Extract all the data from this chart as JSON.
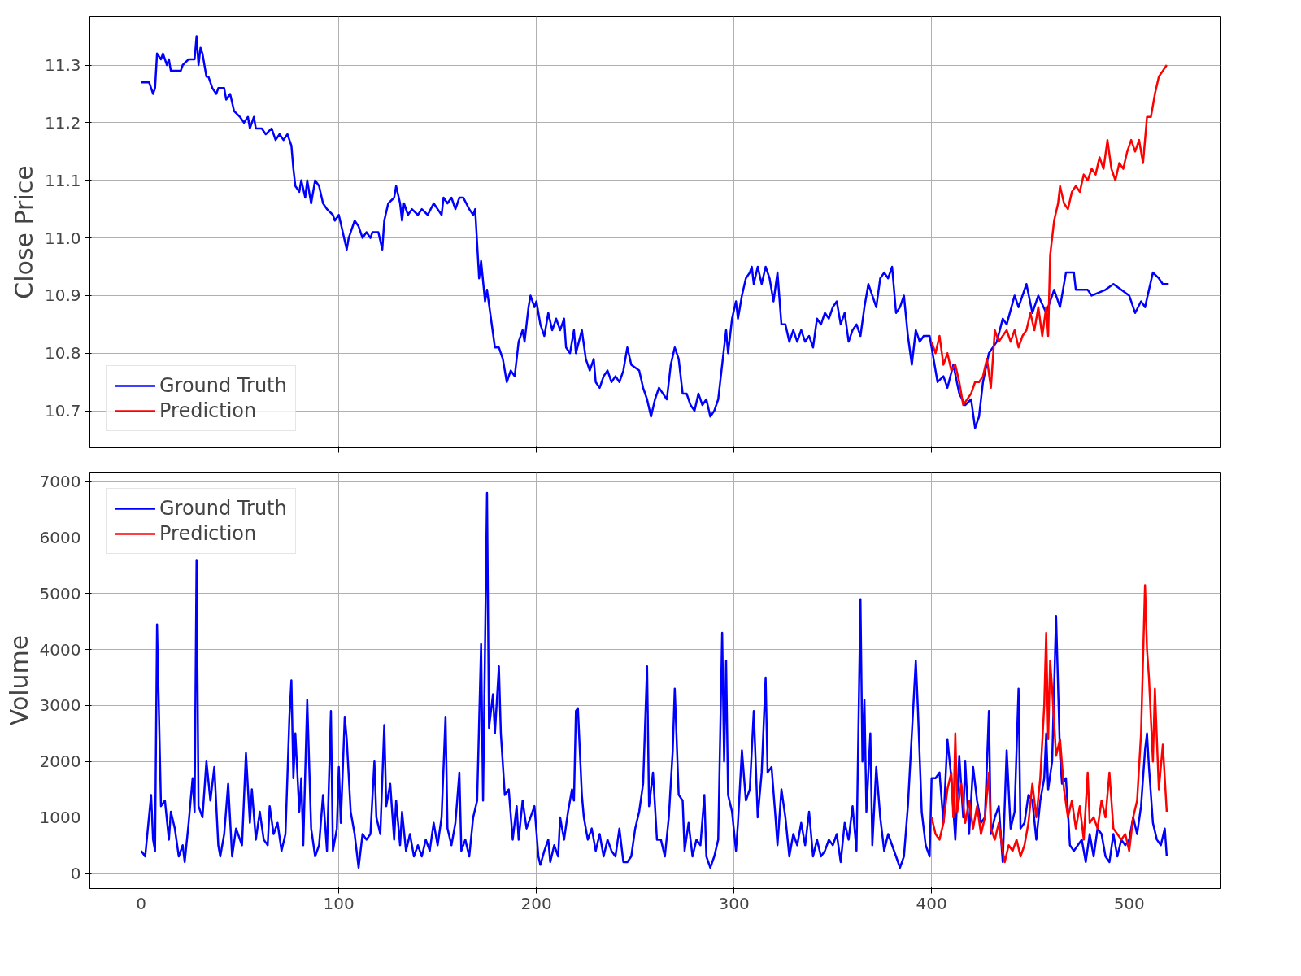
{
  "chart_data": [
    {
      "type": "line",
      "ylabel": "Close Price",
      "xlim": [
        -26,
        546
      ],
      "ylim": [
        10.636,
        11.384
      ],
      "xticks": [
        0,
        100,
        200,
        300,
        400,
        500
      ],
      "yticks": [
        10.7,
        10.8,
        10.9,
        {
          "value": 11.0,
          "label": "11.0"
        },
        11.1,
        11.2,
        11.3
      ],
      "tick_labels": "y",
      "grid": true,
      "legend": "bottom left",
      "series": [
        {
          "name": "Ground Truth",
          "color": "#0000ff",
          "x": [
            0,
            4,
            6,
            7,
            8,
            10,
            11,
            13,
            14,
            15,
            20,
            21,
            24,
            27,
            28,
            29,
            30,
            31,
            33,
            34,
            36,
            38,
            39,
            42,
            43,
            45,
            47,
            50,
            52,
            54,
            55,
            57,
            58,
            61,
            63,
            66,
            68,
            70,
            72,
            74,
            76,
            77,
            78,
            80,
            81,
            83,
            84,
            86,
            88,
            90,
            92,
            94,
            97,
            98,
            100,
            102,
            104,
            105,
            108,
            110,
            112,
            114,
            116,
            117,
            120,
            122,
            123,
            125,
            128,
            129,
            131,
            132,
            133,
            135,
            137,
            140,
            142,
            145,
            148,
            150,
            152,
            153,
            155,
            157,
            159,
            161,
            163,
            166,
            168,
            169,
            171,
            172,
            174,
            175,
            177,
            179,
            181,
            183,
            185,
            187,
            189,
            191,
            193,
            194,
            196,
            197,
            199,
            200,
            202,
            204,
            206,
            208,
            210,
            212,
            214,
            215,
            217,
            219,
            220,
            223,
            225,
            227,
            229,
            230,
            232,
            234,
            236,
            238,
            240,
            242,
            244,
            246,
            248,
            252,
            254,
            256,
            258,
            260,
            262,
            264,
            266,
            268,
            270,
            272,
            274,
            276,
            278,
            280,
            282,
            284,
            286,
            288,
            290,
            292,
            294,
            296,
            297,
            299,
            301,
            302,
            304,
            306,
            308,
            309,
            310,
            312,
            314,
            316,
            318,
            320,
            322,
            324,
            326,
            328,
            330,
            332,
            334,
            336,
            338,
            340,
            342,
            344,
            346,
            348,
            350,
            352,
            354,
            356,
            358,
            360,
            362,
            364,
            366,
            368,
            370,
            372,
            374,
            376,
            378,
            380,
            382,
            384,
            386,
            388,
            390,
            392,
            394,
            396,
            399,
            403,
            406,
            408,
            411,
            414,
            417,
            420,
            422,
            424,
            426,
            429,
            433,
            436,
            438,
            442,
            444,
            448,
            451,
            454,
            458,
            462,
            465,
            468,
            472,
            473,
            479,
            481,
            488,
            492,
            496,
            500,
            503,
            506,
            508,
            510,
            512,
            515,
            517,
            520
          ],
          "values": [
            11.27,
            11.27,
            11.25,
            11.26,
            11.32,
            11.31,
            11.32,
            11.3,
            11.31,
            11.29,
            11.29,
            11.3,
            11.31,
            11.31,
            11.35,
            11.3,
            11.33,
            11.32,
            11.28,
            11.28,
            11.26,
            11.25,
            11.26,
            11.26,
            11.24,
            11.25,
            11.22,
            11.21,
            11.2,
            11.21,
            11.19,
            11.21,
            11.19,
            11.19,
            11.18,
            11.19,
            11.17,
            11.18,
            11.17,
            11.18,
            11.16,
            11.12,
            11.09,
            11.08,
            11.1,
            11.07,
            11.1,
            11.06,
            11.1,
            11.09,
            11.06,
            11.05,
            11.04,
            11.03,
            11.04,
            11.01,
            10.98,
            11.0,
            11.03,
            11.02,
            11.0,
            11.01,
            11.0,
            11.01,
            11.01,
            10.98,
            11.03,
            11.06,
            11.07,
            11.09,
            11.06,
            11.03,
            11.06,
            11.04,
            11.05,
            11.04,
            11.05,
            11.04,
            11.06,
            11.05,
            11.04,
            11.07,
            11.06,
            11.07,
            11.05,
            11.07,
            11.07,
            11.05,
            11.04,
            11.05,
            10.93,
            10.96,
            10.89,
            10.91,
            10.86,
            10.81,
            10.81,
            10.79,
            10.75,
            10.77,
            10.76,
            10.82,
            10.84,
            10.82,
            10.88,
            10.9,
            10.88,
            10.89,
            10.85,
            10.83,
            10.87,
            10.84,
            10.86,
            10.84,
            10.86,
            10.81,
            10.8,
            10.84,
            10.8,
            10.84,
            10.79,
            10.77,
            10.79,
            10.75,
            10.74,
            10.76,
            10.77,
            10.75,
            10.76,
            10.75,
            10.77,
            10.81,
            10.78,
            10.77,
            10.74,
            10.72,
            10.69,
            10.72,
            10.74,
            10.73,
            10.72,
            10.78,
            10.81,
            10.79,
            10.73,
            10.73,
            10.71,
            10.7,
            10.73,
            10.71,
            10.72,
            10.69,
            10.7,
            10.72,
            10.78,
            10.84,
            10.8,
            10.86,
            10.89,
            10.86,
            10.9,
            10.93,
            10.94,
            10.95,
            10.92,
            10.95,
            10.92,
            10.95,
            10.93,
            10.89,
            10.94,
            10.85,
            10.85,
            10.82,
            10.84,
            10.82,
            10.84,
            10.82,
            10.83,
            10.81,
            10.86,
            10.85,
            10.87,
            10.86,
            10.88,
            10.89,
            10.85,
            10.87,
            10.82,
            10.84,
            10.85,
            10.83,
            10.88,
            10.92,
            10.9,
            10.88,
            10.93,
            10.94,
            10.93,
            10.95,
            10.87,
            10.88,
            10.9,
            10.83,
            10.78,
            10.84,
            10.82,
            10.83,
            10.83,
            10.75,
            10.76,
            10.74,
            10.78,
            10.73,
            10.71,
            10.72,
            10.67,
            10.69,
            10.75,
            10.8,
            10.82,
            10.86,
            10.85,
            10.9,
            10.88,
            10.92,
            10.87,
            10.9,
            10.87,
            10.91,
            10.88,
            10.94,
            10.94,
            10.91,
            10.91,
            10.9,
            10.91,
            10.92,
            10.91,
            10.9,
            10.87,
            10.89,
            10.88,
            10.91,
            10.94,
            10.93,
            10.92,
            10.92
          ]
        },
        {
          "name": "Prediction",
          "color": "#ff0000",
          "x": [
            400,
            402,
            404,
            406,
            408,
            410,
            412,
            414,
            416,
            418,
            420,
            422,
            424,
            426,
            428,
            430,
            432,
            434,
            436,
            438,
            440,
            442,
            444,
            446,
            448,
            450,
            452,
            454,
            456,
            458,
            459,
            460,
            462,
            464,
            465,
            467,
            469,
            471,
            473,
            475,
            477,
            479,
            481,
            483,
            485,
            487,
            489,
            491,
            493,
            495,
            497,
            499,
            501,
            503,
            505,
            507,
            509,
            511,
            513,
            515,
            517,
            519
          ],
          "values": [
            10.82,
            10.8,
            10.83,
            10.78,
            10.8,
            10.77,
            10.78,
            10.75,
            10.71,
            10.72,
            10.73,
            10.75,
            10.75,
            10.76,
            10.79,
            10.74,
            10.84,
            10.82,
            10.83,
            10.84,
            10.82,
            10.84,
            10.81,
            10.83,
            10.84,
            10.87,
            10.84,
            10.88,
            10.83,
            10.88,
            10.83,
            10.97,
            11.03,
            11.06,
            11.09,
            11.06,
            11.05,
            11.08,
            11.09,
            11.08,
            11.11,
            11.1,
            11.12,
            11.11,
            11.14,
            11.12,
            11.17,
            11.12,
            11.1,
            11.13,
            11.12,
            11.15,
            11.17,
            11.15,
            11.17,
            11.13,
            11.21,
            11.21,
            11.25,
            11.28,
            11.29,
            11.3
          ]
        }
      ]
    },
    {
      "type": "line",
      "ylabel": "Volume",
      "xlim": [
        -26,
        546
      ],
      "ylim": [
        -274,
        7172
      ],
      "xticks": [
        0,
        100,
        200,
        300,
        400,
        500
      ],
      "yticks": [
        0,
        1000,
        2000,
        3000,
        4000,
        5000,
        6000,
        7000
      ],
      "grid": true,
      "legend": "top left",
      "series": [
        {
          "name": "Ground Truth",
          "color": "#0000ff",
          "x": [
            0,
            2,
            5,
            6,
            7,
            8,
            10,
            12,
            14,
            15,
            17,
            19,
            21,
            22,
            24,
            26,
            27,
            28,
            29,
            31,
            33,
            35,
            37,
            39,
            40,
            42,
            44,
            46,
            48,
            51,
            53,
            55,
            56,
            58,
            60,
            62,
            64,
            65,
            67,
            69,
            71,
            73,
            75,
            76,
            77,
            78,
            80,
            81,
            82,
            84,
            86,
            88,
            90,
            92,
            94,
            96,
            97,
            99,
            100,
            101,
            103,
            104,
            106,
            108,
            110,
            112,
            114,
            116,
            118,
            119,
            121,
            123,
            124,
            126,
            128,
            129,
            131,
            132,
            134,
            136,
            138,
            140,
            142,
            144,
            146,
            148,
            150,
            152,
            154,
            155,
            157,
            159,
            161,
            162,
            164,
            166,
            168,
            170,
            172,
            173,
            175,
            176,
            178,
            179,
            181,
            182,
            184,
            186,
            188,
            190,
            191,
            193,
            195,
            197,
            199,
            201,
            202,
            204,
            206,
            207,
            209,
            211,
            212,
            214,
            216,
            218,
            219,
            220,
            221,
            223,
            224,
            226,
            228,
            230,
            232,
            234,
            236,
            238,
            240,
            242,
            244,
            246,
            248,
            250,
            252,
            254,
            256,
            257,
            259,
            261,
            263,
            265,
            267,
            269,
            270,
            272,
            274,
            275,
            277,
            279,
            281,
            283,
            285,
            286,
            288,
            290,
            292,
            294,
            295,
            296,
            297,
            299,
            301,
            302,
            304,
            306,
            308,
            310,
            312,
            314,
            316,
            317,
            319,
            321,
            322,
            324,
            326,
            328,
            330,
            332,
            334,
            336,
            338,
            340,
            342,
            344,
            346,
            348,
            350,
            352,
            354,
            356,
            358,
            360,
            362,
            364,
            365,
            366,
            367,
            369,
            370,
            372,
            374,
            376,
            378,
            380,
            382,
            384,
            386,
            388,
            390,
            392,
            393,
            395,
            397,
            399,
            400,
            402,
            404,
            406,
            408,
            410,
            412,
            414,
            416,
            417,
            419,
            421,
            423,
            425,
            427,
            429,
            430,
            432,
            434,
            436,
            438,
            440,
            442,
            444,
            445,
            447,
            449,
            451,
            453,
            455,
            457,
            458,
            459,
            461,
            463,
            465,
            466,
            468,
            470,
            472,
            474,
            476,
            478,
            480,
            482,
            484,
            486,
            488,
            490,
            492,
            494,
            496,
            498,
            500,
            502,
            504,
            506,
            508,
            509,
            510,
            512,
            514,
            516,
            518,
            519
          ],
          "values": [
            400,
            300,
            1400,
            600,
            400,
            4450,
            1200,
            1300,
            600,
            1100,
            800,
            300,
            500,
            200,
            900,
            1700,
            1100,
            5600,
            1200,
            1000,
            2000,
            1300,
            1900,
            500,
            300,
            700,
            1600,
            300,
            800,
            500,
            2150,
            900,
            1500,
            600,
            1100,
            600,
            500,
            1200,
            700,
            900,
            400,
            700,
            2800,
            3450,
            1700,
            2500,
            1100,
            1700,
            500,
            3100,
            800,
            300,
            500,
            1400,
            400,
            2900,
            400,
            800,
            1900,
            900,
            2800,
            2400,
            1100,
            700,
            100,
            700,
            600,
            700,
            2000,
            1000,
            700,
            2650,
            1200,
            1600,
            600,
            1300,
            500,
            1100,
            400,
            700,
            300,
            500,
            300,
            600,
            400,
            900,
            500,
            1000,
            2800,
            800,
            500,
            900,
            1800,
            400,
            600,
            300,
            1000,
            1300,
            4100,
            1300,
            6800,
            2600,
            3200,
            2500,
            3700,
            2500,
            1400,
            1500,
            600,
            1200,
            600,
            1300,
            800,
            1000,
            1200,
            300,
            150,
            400,
            600,
            200,
            500,
            300,
            1000,
            600,
            1100,
            1500,
            1300,
            2900,
            2950,
            1400,
            1000,
            600,
            800,
            400,
            700,
            300,
            600,
            400,
            300,
            800,
            200,
            200,
            300,
            800,
            1100,
            1600,
            3700,
            1200,
            1800,
            600,
            600,
            300,
            1000,
            2200,
            3300,
            1400,
            1300,
            400,
            900,
            300,
            600,
            500,
            1400,
            300,
            100,
            300,
            600,
            4300,
            2000,
            3800,
            1400,
            1100,
            400,
            900,
            2200,
            1300,
            1500,
            2900,
            1000,
            1800,
            3500,
            1800,
            1900,
            1000,
            500,
            1500,
            1000,
            300,
            700,
            500,
            900,
            500,
            1100,
            300,
            600,
            300,
            400,
            600,
            500,
            700,
            200,
            900,
            600,
            1200,
            400,
            4900,
            2000,
            3100,
            1100,
            2500,
            500,
            1900,
            1000,
            400,
            700,
            500,
            300,
            100,
            300,
            1200,
            2500,
            3800,
            3000,
            1100,
            500,
            300,
            1700,
            1700,
            1800,
            900,
            2400,
            1700,
            600,
            2100,
            1000,
            2000,
            700,
            1900,
            1300,
            900,
            1000,
            2900,
            700,
            1000,
            1200,
            200,
            2200,
            800,
            1100,
            3300,
            800,
            900,
            1400,
            1300,
            600,
            1300,
            1700,
            2500,
            1500,
            2000,
            4600,
            2100,
            1600,
            1700,
            500,
            400,
            500,
            600,
            200,
            700,
            300,
            800,
            700,
            300,
            200,
            700,
            300,
            600,
            500,
            600,
            1000,
            700,
            1200,
            2200,
            2500,
            1900,
            900,
            600,
            500,
            800,
            300
          ]
        },
        {
          "name": "Prediction",
          "color": "#ff0000",
          "x": [
            400,
            402,
            404,
            406,
            408,
            410,
            411,
            412,
            413,
            415,
            417,
            419,
            421,
            423,
            425,
            427,
            429,
            430,
            432,
            434,
            436,
            437,
            439,
            441,
            443,
            445,
            447,
            449,
            451,
            453,
            455,
            457,
            458,
            459,
            460,
            461,
            463,
            465,
            467,
            469,
            471,
            473,
            475,
            477,
            479,
            480,
            482,
            484,
            486,
            488,
            490,
            492,
            494,
            496,
            498,
            500,
            502,
            504,
            506,
            508,
            509,
            510,
            512,
            513,
            515,
            517,
            519
          ],
          "values": [
            1000,
            700,
            600,
            900,
            1500,
            1800,
            1000,
            2500,
            1100,
            1600,
            900,
            1300,
            800,
            1200,
            700,
            1000,
            1800,
            800,
            600,
            900,
            400,
            200,
            500,
            400,
            600,
            300,
            500,
            900,
            1600,
            1000,
            1700,
            3000,
            4300,
            2400,
            3800,
            3300,
            2100,
            2400,
            1500,
            1000,
            1300,
            800,
            1200,
            600,
            1800,
            900,
            1000,
            800,
            1300,
            1000,
            1800,
            800,
            700,
            600,
            700,
            400,
            1000,
            1300,
            2500,
            5150,
            4000,
            3500,
            2000,
            3300,
            1500,
            2300,
            1100
          ]
        }
      ]
    }
  ]
}
